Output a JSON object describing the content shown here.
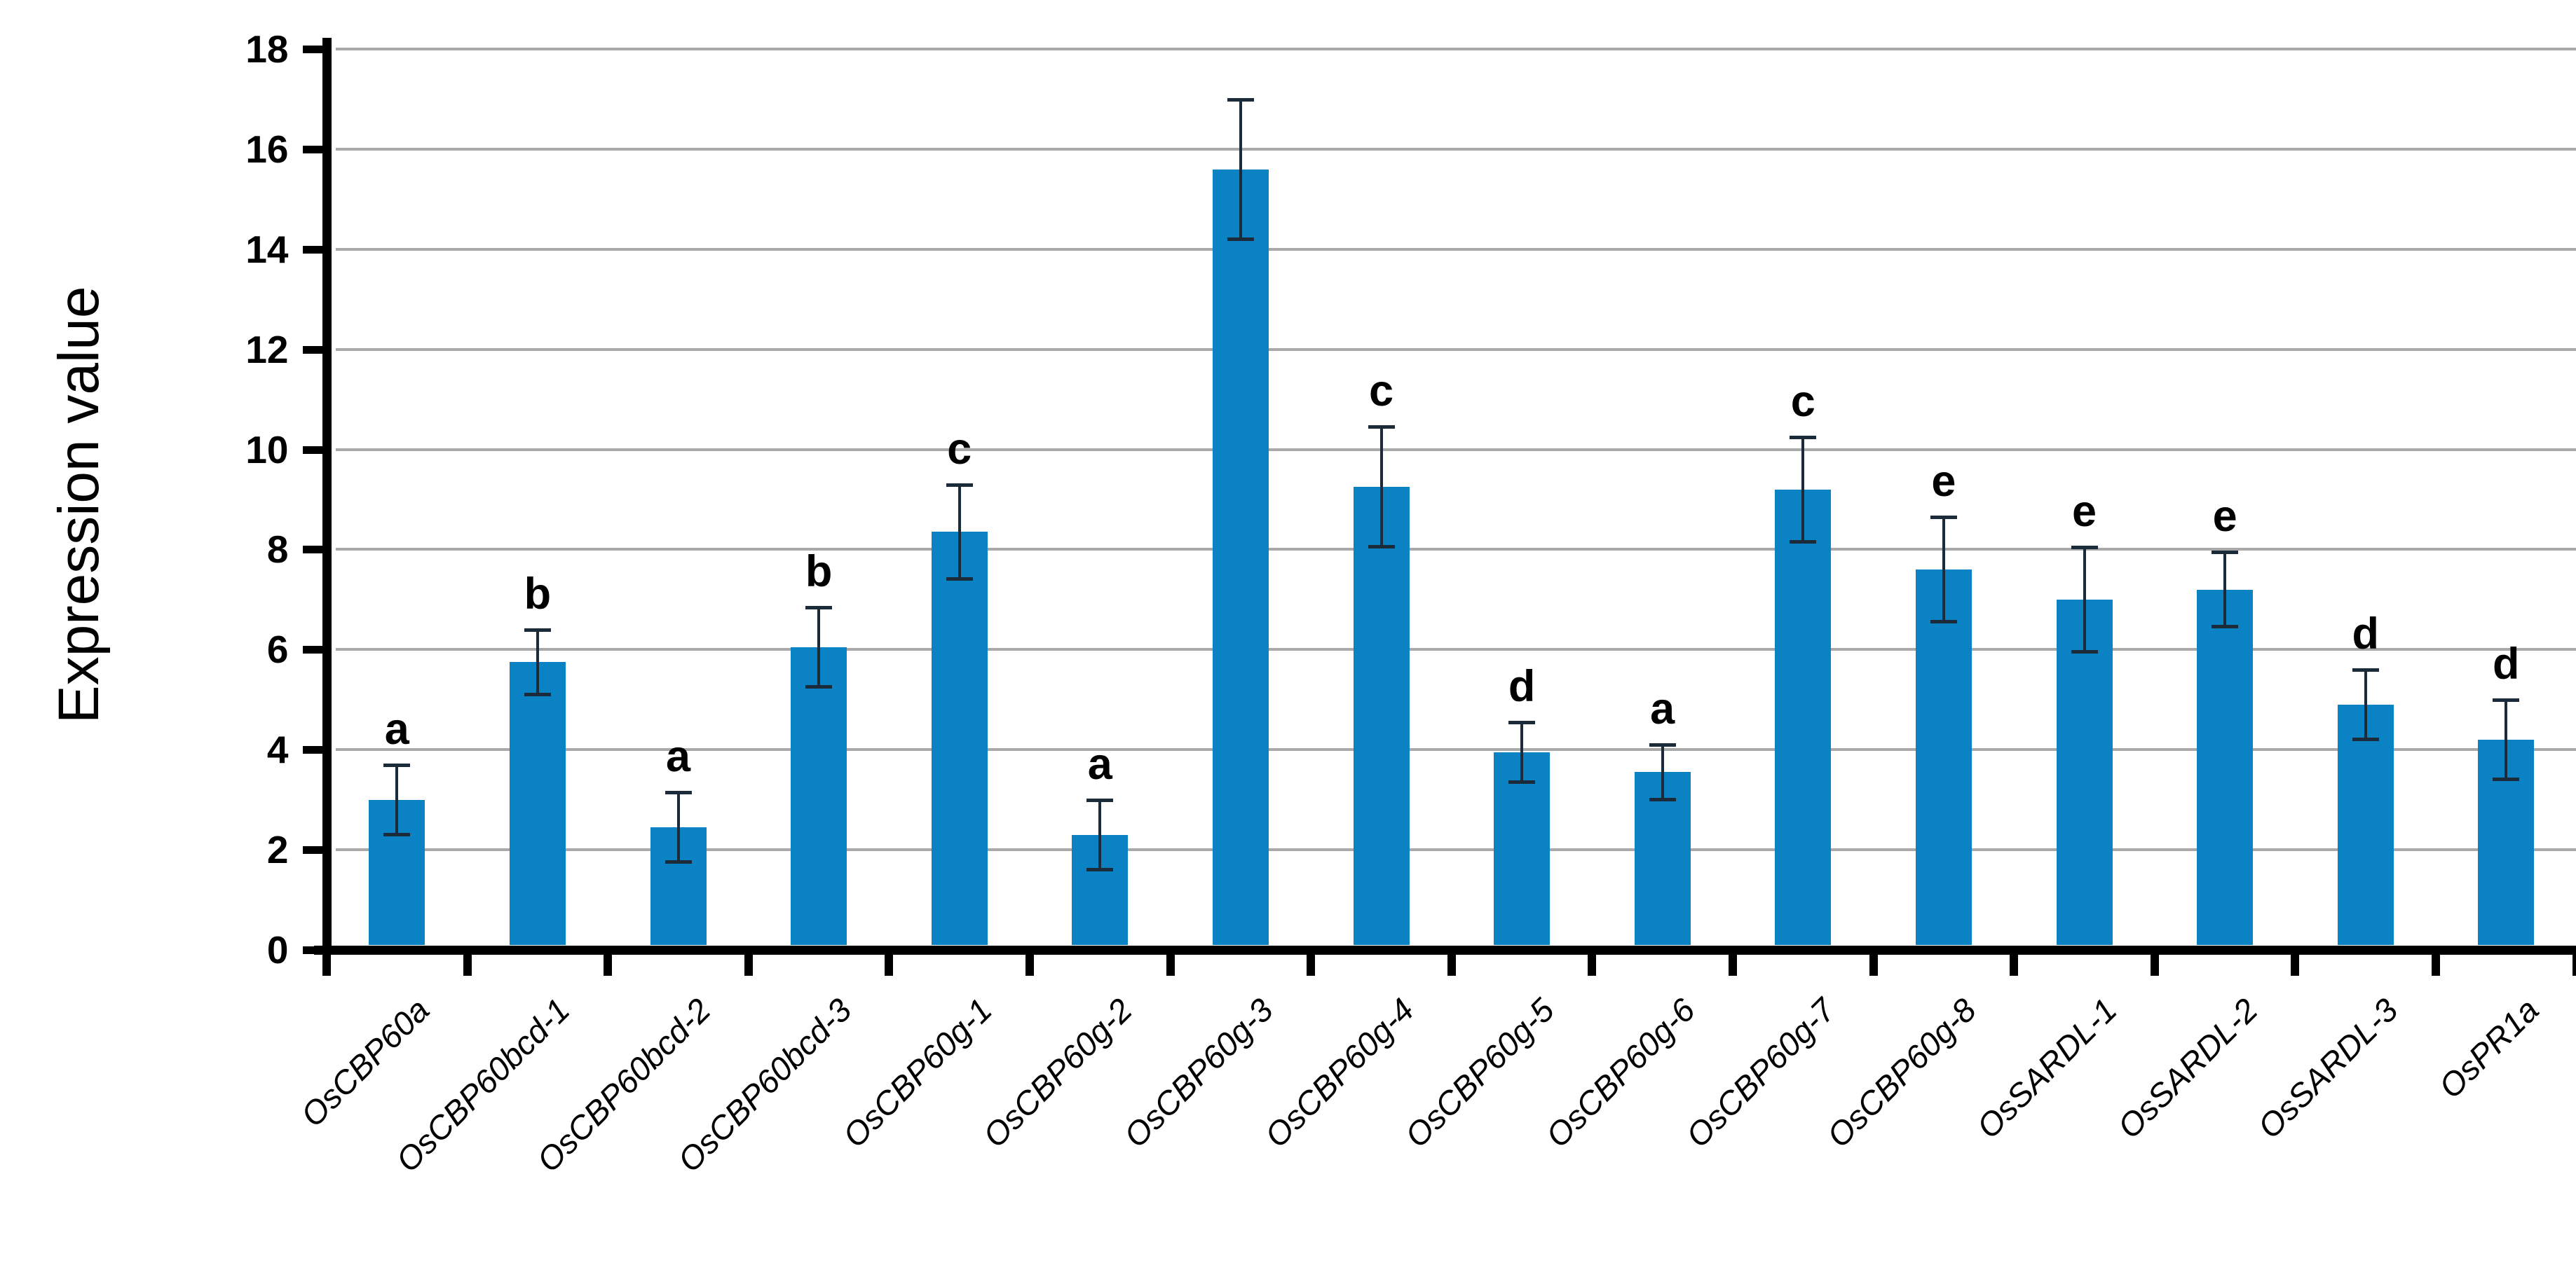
{
  "figure": {
    "background": "#ffffff"
  },
  "chart_data": {
    "type": "bar",
    "title": "",
    "xlabel": "",
    "ylabel": "Expression value",
    "ylim": [
      0,
      18
    ],
    "yticks": [
      0,
      2,
      4,
      6,
      8,
      10,
      12,
      14,
      16,
      18
    ],
    "grid": true,
    "legend": null,
    "bar_color": "#0a82c3",
    "gridline_color": "#a9a9a9",
    "axis_color": "#000000",
    "error_bar_color": "#1c2b39",
    "categories": [
      "OsCBP60a",
      "OsCBP60bcd-1",
      "OsCBP60bcd-2",
      "OsCBP60bcd-3",
      "OsCBP60g-1",
      "OsCBP60g-2",
      "OsCBP60g-3",
      "OsCBP60g-4",
      "OsCBP60g-5",
      "OsCBP60g-6",
      "OsCBP60g-7",
      "OsCBP60g-8",
      "OsSARDL-1",
      "OsSARDL-2",
      "OsSARDL-3",
      "OsPR1a"
    ],
    "values": [
      3.0,
      5.75,
      2.45,
      6.05,
      8.35,
      2.3,
      15.6,
      9.25,
      3.95,
      3.55,
      9.2,
      7.6,
      7.0,
      7.2,
      4.9,
      4.2
    ],
    "errors": [
      0.7,
      0.65,
      0.7,
      0.8,
      0.95,
      0.7,
      1.4,
      1.2,
      0.6,
      0.55,
      1.05,
      1.05,
      1.05,
      0.75,
      0.7,
      0.8
    ],
    "sig_letters": [
      "a",
      "b",
      "a",
      "b",
      "c",
      "a",
      null,
      "c",
      "d",
      "a",
      "c",
      "e",
      "e",
      "e",
      "d",
      "d"
    ]
  }
}
